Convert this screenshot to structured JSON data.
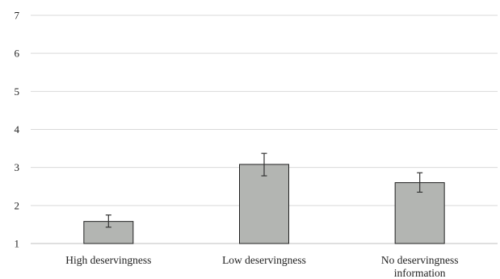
{
  "chart_data": {
    "type": "bar",
    "title": "",
    "xlabel": "",
    "ylabel": "",
    "ylim": [
      1,
      7
    ],
    "yticks": [
      1,
      2,
      3,
      4,
      5,
      6,
      7
    ],
    "grid": true,
    "legend": "none",
    "categories": [
      [
        "High deservingness"
      ],
      [
        "Low deservingness"
      ],
      [
        "No deservingness",
        "information"
      ]
    ],
    "values": [
      1.58,
      3.08,
      2.6
    ],
    "error_low": [
      1.43,
      2.78,
      2.35
    ],
    "error_high": [
      1.75,
      3.37,
      2.86
    ],
    "colors": {
      "bar_fill": "#b3b5b2",
      "bar_stroke": "#222222",
      "grid": "#d9d9d9"
    }
  }
}
